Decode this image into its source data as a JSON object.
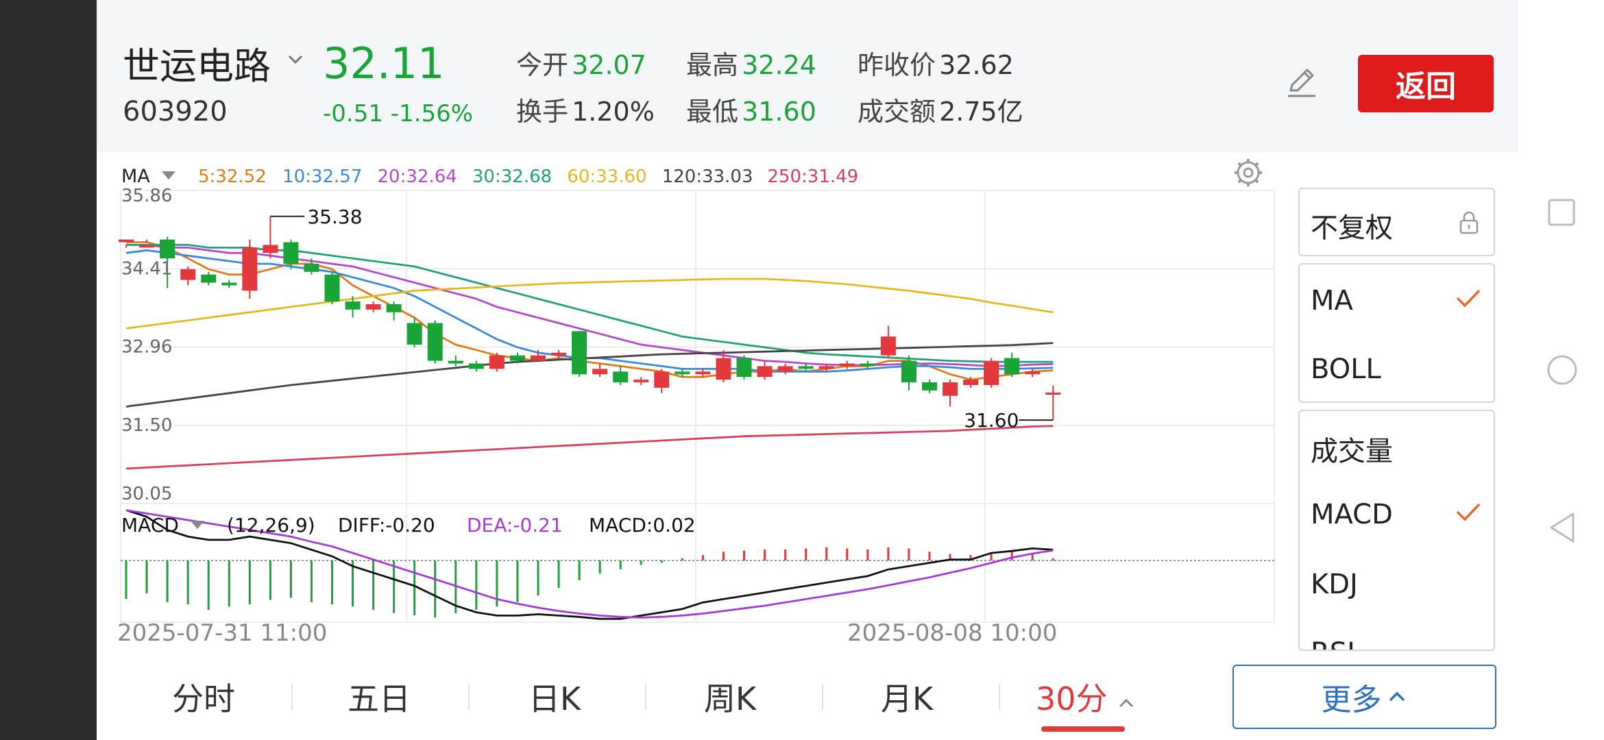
{
  "header": {
    "stock_name": "世运电路",
    "stock_code": "603920",
    "price": "32.11",
    "change": "-0.51",
    "change_pct": "-1.56%",
    "quote": {
      "open_label": "今开",
      "open": "32.07",
      "high_label": "最高",
      "high": "32.24",
      "prev_close_label": "昨收价",
      "prev_close": "32.62",
      "turnover_label": "换手",
      "turnover": "1.20%",
      "low_label": "最低",
      "low": "31.60",
      "amount_label": "成交额",
      "amount": "2.75亿"
    },
    "back_label": "返回",
    "colors": {
      "up": "#e4393c",
      "down": "#1aa336",
      "accent": "#de1a1a"
    }
  },
  "indicator_bar": {
    "ma_label": "MA",
    "ma_values": [
      {
        "text": "5:32.52",
        "color": "#e07b1a"
      },
      {
        "text": "10:32.57",
        "color": "#3a8ad6"
      },
      {
        "text": "20:32.64",
        "color": "#b548cf"
      },
      {
        "text": "30:32.68",
        "color": "#21a07a"
      },
      {
        "text": "60:33.60",
        "color": "#e6b820"
      },
      {
        "text": "120:33.03",
        "color": "#444444"
      },
      {
        "text": "250:31.49",
        "color": "#d6405a"
      }
    ],
    "macd_label": "MACD",
    "macd_params": "(12,26,9)",
    "diff": "DIFF:-0.20",
    "dea": "DEA:-0.21",
    "macd": "MACD:0.02"
  },
  "chart_data": {
    "type": "candlestick",
    "interval": "30分",
    "y_ticks": [
      "35.86",
      "34.41",
      "32.96",
      "31.50",
      "30.05"
    ],
    "ylim": [
      30.05,
      35.86
    ],
    "x_ticks": [
      "2025-07-31 11:00",
      "2025-08-08 10:00"
    ],
    "annotations": {
      "high": "35.38",
      "low": "31.60"
    },
    "candles": [
      [
        34.9,
        34.95,
        34.85,
        34.8
      ],
      [
        34.8,
        34.85,
        34.9,
        34.95
      ],
      [
        34.95,
        34.6,
        35.0,
        34.05
      ],
      [
        34.2,
        34.4,
        34.45,
        34.1
      ],
      [
        34.3,
        34.15,
        34.35,
        34.1
      ],
      [
        34.15,
        34.1,
        34.2,
        34.05
      ],
      [
        34.0,
        34.8,
        34.95,
        33.85
      ],
      [
        34.7,
        34.85,
        35.38,
        34.6
      ],
      [
        34.9,
        34.5,
        34.95,
        34.4
      ],
      [
        34.5,
        34.35,
        34.6,
        34.3
      ],
      [
        34.3,
        33.8,
        34.35,
        33.75
      ],
      [
        33.8,
        33.65,
        33.9,
        33.5
      ],
      [
        33.65,
        33.75,
        33.8,
        33.6
      ],
      [
        33.75,
        33.6,
        33.8,
        33.45
      ],
      [
        33.4,
        33.0,
        33.5,
        32.95
      ],
      [
        33.4,
        32.7,
        33.45,
        32.65
      ],
      [
        32.7,
        32.65,
        32.8,
        32.6
      ],
      [
        32.65,
        32.55,
        32.7,
        32.5
      ],
      [
        32.55,
        32.8,
        32.85,
        32.5
      ],
      [
        32.8,
        32.7,
        32.85,
        32.65
      ],
      [
        32.7,
        32.8,
        32.9,
        32.7
      ],
      [
        32.8,
        32.85,
        32.9,
        32.75
      ],
      [
        33.25,
        32.45,
        33.25,
        32.4
      ],
      [
        32.45,
        32.55,
        32.65,
        32.4
      ],
      [
        32.5,
        32.3,
        32.6,
        32.25
      ],
      [
        32.3,
        32.35,
        32.4,
        32.25
      ],
      [
        32.2,
        32.5,
        32.55,
        32.1
      ],
      [
        32.5,
        32.45,
        32.55,
        32.4
      ],
      [
        32.45,
        32.5,
        32.55,
        32.4
      ],
      [
        32.35,
        32.75,
        32.9,
        32.3
      ],
      [
        32.75,
        32.4,
        32.8,
        32.35
      ],
      [
        32.4,
        32.6,
        32.7,
        32.35
      ],
      [
        32.5,
        32.6,
        32.65,
        32.45
      ],
      [
        32.6,
        32.55,
        32.65,
        32.5
      ],
      [
        32.55,
        32.6,
        32.65,
        32.5
      ],
      [
        32.6,
        32.65,
        32.7,
        32.55
      ],
      [
        32.65,
        32.6,
        32.7,
        32.55
      ],
      [
        32.8,
        33.15,
        33.35,
        32.75
      ],
      [
        32.7,
        32.3,
        32.8,
        32.15
      ],
      [
        32.3,
        32.15,
        32.35,
        32.1
      ],
      [
        32.05,
        32.3,
        32.35,
        31.85
      ],
      [
        32.25,
        32.35,
        32.4,
        32.2
      ],
      [
        32.25,
        32.7,
        32.75,
        32.2
      ],
      [
        32.75,
        32.45,
        32.85,
        32.4
      ],
      [
        32.45,
        32.5,
        32.55,
        32.4
      ],
      [
        32.07,
        32.11,
        32.24,
        31.6
      ]
    ],
    "ma_series": {
      "5": [
        34.9,
        34.9,
        34.8,
        34.6,
        34.4,
        34.3,
        34.3,
        34.4,
        34.5,
        34.5,
        34.4,
        34.1,
        33.9,
        33.7,
        33.5,
        33.2,
        33.0,
        32.9,
        32.8,
        32.75,
        32.7,
        32.75,
        32.7,
        32.65,
        32.6,
        32.55,
        32.5,
        32.4,
        32.4,
        32.45,
        32.5,
        32.5,
        32.55,
        32.5,
        32.55,
        32.6,
        32.6,
        32.7,
        32.7,
        32.6,
        32.45,
        32.35,
        32.4,
        32.45,
        32.5,
        32.52
      ],
      "10": [
        34.7,
        34.75,
        34.7,
        34.65,
        34.6,
        34.55,
        34.5,
        34.5,
        34.45,
        34.4,
        34.35,
        34.25,
        34.15,
        34.05,
        33.9,
        33.7,
        33.5,
        33.3,
        33.1,
        32.95,
        32.85,
        32.8,
        32.75,
        32.75,
        32.7,
        32.65,
        32.6,
        32.55,
        32.55,
        32.55,
        32.55,
        32.5,
        32.5,
        32.5,
        32.5,
        32.52,
        32.55,
        32.58,
        32.6,
        32.6,
        32.58,
        32.55,
        32.55,
        32.55,
        32.56,
        32.57
      ],
      "20": [
        34.85,
        34.85,
        34.8,
        34.8,
        34.75,
        34.7,
        34.7,
        34.65,
        34.6,
        34.55,
        34.5,
        34.45,
        34.35,
        34.25,
        34.15,
        34.05,
        33.95,
        33.85,
        33.7,
        33.6,
        33.5,
        33.4,
        33.3,
        33.2,
        33.1,
        33.0,
        32.95,
        32.9,
        32.85,
        32.8,
        32.75,
        32.7,
        32.68,
        32.65,
        32.63,
        32.62,
        32.62,
        32.63,
        32.64,
        32.65,
        32.64,
        32.62,
        32.6,
        32.61,
        32.63,
        32.64
      ],
      "30": [
        34.85,
        34.85,
        34.85,
        34.85,
        34.8,
        34.8,
        34.8,
        34.75,
        34.75,
        34.7,
        34.65,
        34.6,
        34.55,
        34.5,
        34.45,
        34.35,
        34.25,
        34.15,
        34.05,
        33.95,
        33.85,
        33.75,
        33.65,
        33.55,
        33.45,
        33.35,
        33.25,
        33.15,
        33.1,
        33.05,
        33.0,
        32.95,
        32.9,
        32.85,
        32.82,
        32.8,
        32.78,
        32.76,
        32.74,
        32.72,
        32.7,
        32.69,
        32.68,
        32.68,
        32.68,
        32.68
      ],
      "60": [
        33.3,
        33.35,
        33.4,
        33.45,
        33.5,
        33.55,
        33.6,
        33.65,
        33.7,
        33.75,
        33.8,
        33.85,
        33.9,
        33.95,
        34.0,
        34.02,
        34.04,
        34.06,
        34.08,
        34.1,
        34.12,
        34.14,
        34.15,
        34.16,
        34.17,
        34.18,
        34.19,
        34.2,
        34.21,
        34.22,
        34.22,
        34.22,
        34.2,
        34.18,
        34.15,
        34.12,
        34.08,
        34.04,
        34.0,
        33.95,
        33.9,
        33.85,
        33.78,
        33.72,
        33.66,
        33.6
      ],
      "120": [
        31.85,
        31.9,
        31.95,
        32.0,
        32.05,
        32.1,
        32.15,
        32.2,
        32.25,
        32.29,
        32.33,
        32.37,
        32.41,
        32.45,
        32.49,
        32.53,
        32.57,
        32.61,
        32.65,
        32.68,
        32.7,
        32.72,
        32.74,
        32.76,
        32.78,
        32.8,
        32.82,
        32.83,
        32.84,
        32.85,
        32.86,
        32.87,
        32.88,
        32.89,
        32.9,
        32.91,
        32.92,
        32.93,
        32.94,
        32.95,
        32.96,
        32.97,
        32.98,
        32.99,
        33.01,
        33.03
      ],
      "250": [
        30.7,
        30.72,
        30.74,
        30.76,
        30.78,
        30.8,
        30.82,
        30.84,
        30.86,
        30.88,
        30.9,
        30.92,
        30.94,
        30.96,
        30.98,
        31.0,
        31.02,
        31.04,
        31.06,
        31.08,
        31.1,
        31.12,
        31.14,
        31.16,
        31.18,
        31.2,
        31.22,
        31.24,
        31.26,
        31.28,
        31.3,
        31.31,
        31.32,
        31.33,
        31.34,
        31.35,
        31.36,
        31.37,
        31.38,
        31.39,
        31.4,
        31.42,
        31.44,
        31.46,
        31.48,
        31.49
      ]
    },
    "macd_hist": [
      -0.35,
      -0.3,
      -0.38,
      -0.4,
      -0.45,
      -0.42,
      -0.4,
      -0.36,
      -0.34,
      -0.38,
      -0.4,
      -0.42,
      -0.45,
      -0.48,
      -0.5,
      -0.52,
      -0.48,
      -0.45,
      -0.42,
      -0.38,
      -0.32,
      -0.25,
      -0.18,
      -0.12,
      -0.08,
      -0.04,
      -0.02,
      0.02,
      0.05,
      0.08,
      0.09,
      0.1,
      0.1,
      0.11,
      0.12,
      0.11,
      0.1,
      0.12,
      0.11,
      0.08,
      0.06,
      0.05,
      0.07,
      0.08,
      0.06,
      0.02
    ],
    "diff_series": [
      0.4,
      0.3,
      0.1,
      0.0,
      -0.05,
      -0.05,
      0.0,
      -0.05,
      -0.1,
      -0.2,
      -0.3,
      -0.45,
      -0.55,
      -0.65,
      -0.75,
      -0.9,
      -1.05,
      -1.15,
      -1.2,
      -1.2,
      -1.18,
      -1.2,
      -1.22,
      -1.25,
      -1.25,
      -1.2,
      -1.15,
      -1.1,
      -1.0,
      -0.95,
      -0.9,
      -0.85,
      -0.8,
      -0.75,
      -0.7,
      -0.65,
      -0.6,
      -0.5,
      -0.45,
      -0.4,
      -0.35,
      -0.35,
      -0.25,
      -0.22,
      -0.18,
      -0.2
    ],
    "dea_series": [
      0.4,
      0.35,
      0.3,
      0.25,
      0.2,
      0.15,
      0.1,
      0.05,
      0.0,
      -0.08,
      -0.15,
      -0.25,
      -0.35,
      -0.45,
      -0.55,
      -0.65,
      -0.75,
      -0.85,
      -0.95,
      -1.02,
      -1.08,
      -1.13,
      -1.17,
      -1.2,
      -1.22,
      -1.23,
      -1.22,
      -1.2,
      -1.17,
      -1.13,
      -1.09,
      -1.05,
      -1.0,
      -0.95,
      -0.9,
      -0.85,
      -0.8,
      -0.74,
      -0.68,
      -0.62,
      -0.55,
      -0.48,
      -0.4,
      -0.32,
      -0.26,
      -0.21
    ],
    "macd_ylim": [
      -1.3,
      0.5
    ]
  },
  "side_panel": {
    "adjust_label": "不复权",
    "main_indicators": [
      {
        "label": "MA",
        "checked": true
      },
      {
        "label": "BOLL",
        "checked": false
      }
    ],
    "sub_indicators": [
      {
        "label": "成交量",
        "checked": false
      },
      {
        "label": "MACD",
        "checked": true
      },
      {
        "label": "KDJ",
        "checked": false
      },
      {
        "label": "RSI",
        "checked": false
      }
    ]
  },
  "bottom_tabs": {
    "items": [
      "分时",
      "五日",
      "日K",
      "周K",
      "月K",
      "30分"
    ],
    "active": "30分",
    "more_label": "更多"
  }
}
